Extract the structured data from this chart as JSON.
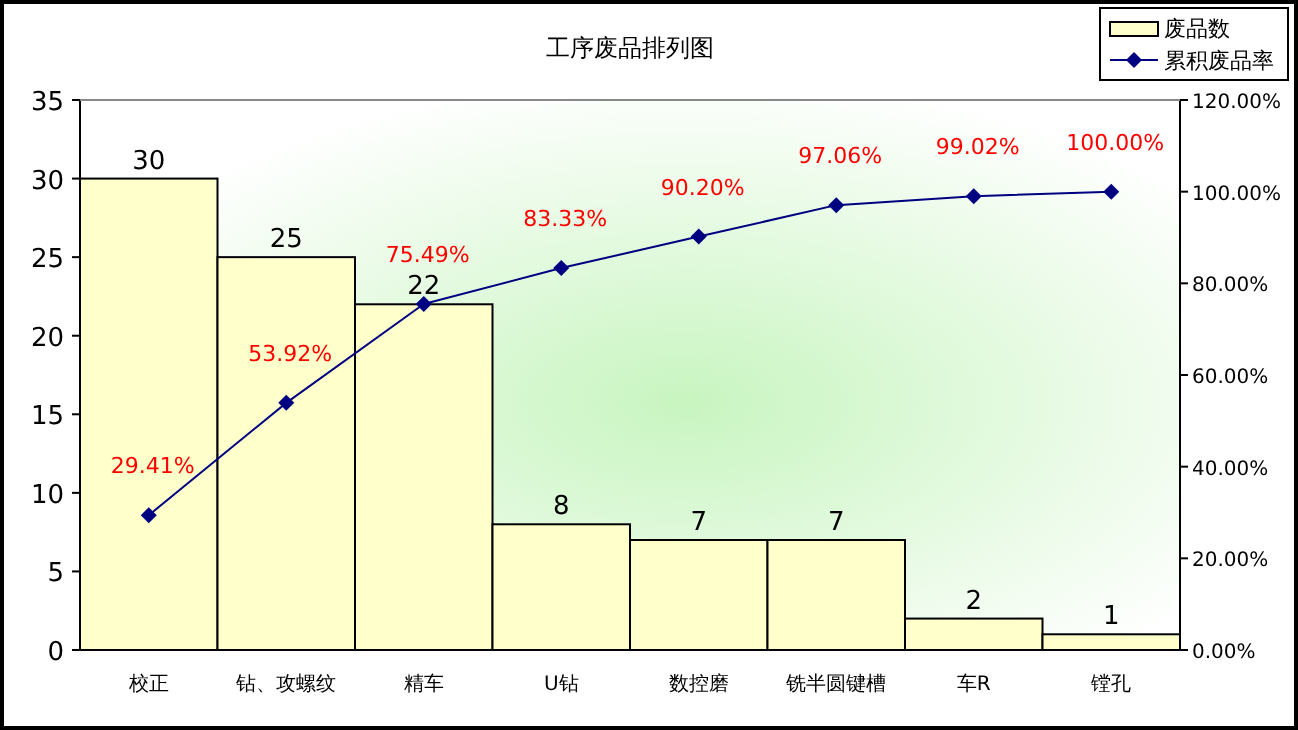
{
  "chart_data": {
    "type": "bar",
    "title": "工序废品排列图",
    "categories": [
      "校正",
      "钻、攻螺纹",
      "精车",
      "U钻",
      "数控磨",
      "铣半圆键槽",
      "车R",
      "镗孔"
    ],
    "series": [
      {
        "name": "废品数",
        "color": "#ffffcc",
        "values": [
          30,
          25,
          22,
          8,
          7,
          7,
          2,
          1
        ],
        "value_labels": [
          "30",
          "25",
          "22",
          "8",
          "7",
          "7",
          "2",
          "1"
        ]
      },
      {
        "name": "累积废品率",
        "type": "line",
        "axis": "y2",
        "color": "#000080",
        "marker": "diamond",
        "values": [
          29.41,
          53.92,
          75.49,
          83.33,
          90.2,
          97.06,
          99.02,
          100.0
        ],
        "value_labels": [
          "29.41%",
          "53.92%",
          "75.49%",
          "83.33%",
          "90.20%",
          "97.06%",
          "99.02%",
          "100.00%"
        ]
      }
    ],
    "ylim": [
      0,
      35
    ],
    "yticks": [
      0,
      5,
      10,
      15,
      20,
      25,
      30,
      35
    ],
    "y2lim": [
      0,
      120
    ],
    "y2ticks": [
      {
        "value": 0,
        "label": "0.00%"
      },
      {
        "value": 20,
        "label": "20.00%"
      },
      {
        "value": 40,
        "label": "40.00%"
      },
      {
        "value": 60,
        "label": "60.00%"
      },
      {
        "value": 80,
        "label": "80.00%"
      },
      {
        "value": 100,
        "label": "100.00%"
      },
      {
        "value": 120,
        "label": "120.00%"
      }
    ],
    "grid": false,
    "legend": "top right"
  }
}
